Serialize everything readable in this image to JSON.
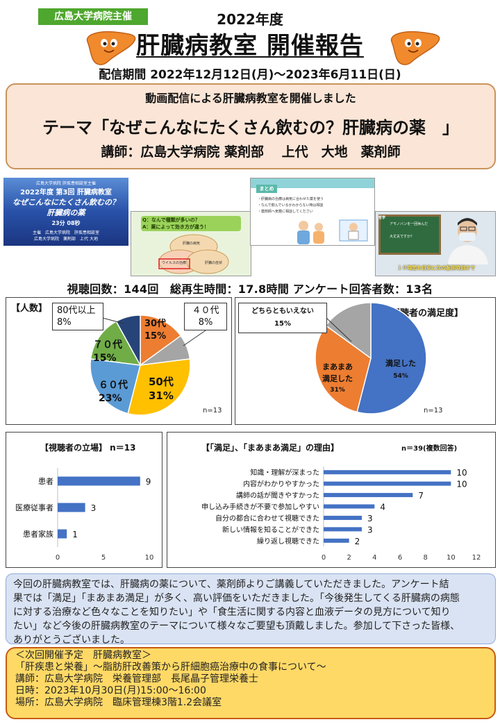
{
  "header": {
    "host_badge": "広島大学病院主催",
    "year": "2022年度",
    "title": "肝臓病教室 開催報告",
    "period": "配信期間 2022年12月12日(月)～2023年6月11日(日)"
  },
  "theme": {
    "line1": "動画配信による肝臓病教室を開催しました",
    "line2": "テーマ「なぜこんなにたくさん飲むの？肝臓病の薬　」",
    "line3": "講師：広島大学病院 薬剤部　 上代　大地　薬剤師"
  },
  "thumbnails": {
    "t1": {
      "top": "広島大学病院 肝疾患相談室主催",
      "title1": "2022年度 第3回 肝臓病教室",
      "title2": "なぜこんなにたくさん飲むの？",
      "title3": "肝臓病の薬",
      "duration": "23分 08秒",
      "footer1": "主催　広島大学病院　肝疾患相談室",
      "footer2": "広島大学病院　薬剤部　上代 大地"
    },
    "t2": {
      "q": "Q：なんで種類が多いの？",
      "a": "A：薬によって効き方が違う！",
      "c1": "肝臓の病気",
      "c2": "ウイルスの治療",
      "c3": "肝臓の症状"
    },
    "t3": {
      "head": "まとめ",
      "b1": "・肝臓病の治療は病気に合わせた薬を使う",
      "b2": "・なんで飲んでいるかわからない時は相談",
      "b3": "・薬剤師へ気軽に相談してください"
    },
    "t4": {
      "board1": "アモノバンを一回休んだ",
      "board2": "大丈夫ですか？",
      "caption": "１０時間を目安に次の服用時刻まで"
    }
  },
  "stats": "視聴回数：144回　総再生時間：17.8時間 アンケート回答者数：13名",
  "pie_age": {
    "box_label": "【人数】",
    "n_label": "n=13",
    "labels": [
      {
        "line1": "30代",
        "line2": "15%"
      },
      {
        "line1": "４０代",
        "line2": "8%"
      },
      {
        "line1": "50代",
        "line2": "31%"
      },
      {
        "line1": "６０代",
        "line2": "23%"
      },
      {
        "line1": "７０代",
        "line2": "15%"
      },
      {
        "line1": "80代以上",
        "line2": "8%"
      }
    ]
  },
  "pie_sat": {
    "box_label": "【視聴者の満足度】",
    "n_label": "n=13",
    "labels": [
      {
        "line1": "満足した",
        "line2": "54%"
      },
      {
        "line1": "まあまあ",
        "line2": "満足した",
        "line3": "31%"
      },
      {
        "line1": "どちらともいえない",
        "line2": "15%"
      }
    ]
  },
  "bar_role": {
    "title": "【視聴者の立場】 n＝13"
  },
  "bar_reason": {
    "title": "【「満足」、「まあまあ満足」の理由】",
    "n_label": "n＝39(複数回答)"
  },
  "summary": {
    "line1": "今回の肝臓病教室では、肝臓病の薬について、薬剤師よりご講義していただきました。アンケート結",
    "line2": "果では「満足」「まあまあ満足」が多く、高い評価をいただきました。「今後発生してくる肝臓病の病態",
    "line3": "に対する治療など色々なことを知りたい」や「食生活に関する内容と血液データの見方について知り",
    "line4": "たい」など今後の肝臓病教室のテーマについて様々なご要望も頂戴しました。参加して下さった皆様、",
    "line5": "ありがとうございました。"
  },
  "next": {
    "line1": "＜次回開催予定　肝臓病教室＞",
    "line2": "「肝疾患と栄養」～脂肪肝改善策から肝細胞癌治療中の食事について～",
    "line3": "講師：広島大学病院　栄養管理部　長尾晶子管理栄養士",
    "line4": "日時：2023年10月30日(月)15:00～16:00",
    "line5": "場所：広島大学病院　臨床管理棟3階1.2会議室"
  },
  "chart_data": [
    {
      "type": "pie",
      "title": "【人数】",
      "categories": [
        "30代",
        "４０代",
        "50代",
        "６０代",
        "７０代",
        "80代以上"
      ],
      "values": [
        15,
        8,
        31,
        23,
        15,
        8
      ],
      "colors": [
        "#ed7d31",
        "#a5a5a5",
        "#ffc000",
        "#5b9bd5",
        "#70ad47",
        "#264478"
      ],
      "note": "n=13"
    },
    {
      "type": "pie",
      "title": "【視聴者の満足度】",
      "categories": [
        "満足した",
        "まあまあ満足した",
        "どちらともいえない"
      ],
      "values": [
        54,
        31,
        15
      ],
      "colors": [
        "#4472c4",
        "#ed7d31",
        "#a5a5a5"
      ],
      "note": "n=13"
    },
    {
      "type": "bar",
      "title": "【視聴者の立場】 n＝13",
      "categories": [
        "患者",
        "医療従事者",
        "患者家族"
      ],
      "values": [
        9,
        3,
        1
      ],
      "xlim": [
        0,
        10
      ],
      "ticks": [
        0,
        5,
        10
      ],
      "color": "#4472c4"
    },
    {
      "type": "bar",
      "title": "【「満足」、「まあまあ満足」の理由】",
      "categories": [
        "知識・理解が深まった",
        "内容がわかりやすかった",
        "講師の話が聞きやすかった",
        "申し込み手続きが不要で参加しやすい",
        "自分の都合に合わせて視聴できた",
        "新しい情報を知ることができた",
        "繰り返し視聴できた"
      ],
      "values": [
        10,
        10,
        7,
        4,
        3,
        3,
        2
      ],
      "xlim": [
        0,
        12
      ],
      "ticks": [
        0,
        2,
        4,
        6,
        8,
        10,
        12
      ],
      "color": "#4472c4",
      "note": "n＝39(複数回答)"
    }
  ]
}
